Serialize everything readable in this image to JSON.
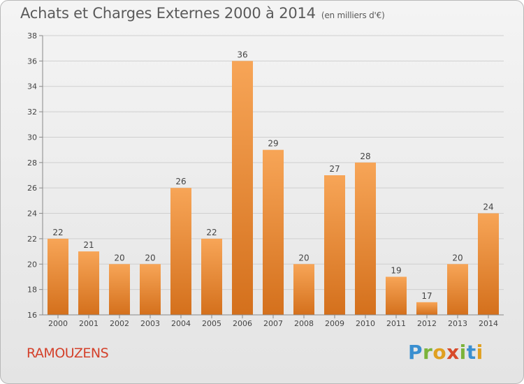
{
  "title": "Achats et Charges Externes 2000 à 2014",
  "subtitle": "(en milliers d'€)",
  "place": "RAMOUZENS",
  "logo_letters": [
    "P",
    "r",
    "o",
    "x",
    "i",
    "t",
    "i"
  ],
  "colors": {
    "bar_light": "#f7a557",
    "bar_dark": "#d4701c",
    "place": "#d4412b"
  },
  "chart_data": {
    "type": "bar",
    "title": "Achats et Charges Externes 2000 à 2014",
    "categories": [
      "2000",
      "2001",
      "2002",
      "2003",
      "2004",
      "2005",
      "2006",
      "2007",
      "2008",
      "2009",
      "2010",
      "2011",
      "2012",
      "2013",
      "2014"
    ],
    "values": [
      22,
      21,
      20,
      20,
      26,
      22,
      36,
      29,
      20,
      27,
      28,
      19,
      17,
      20,
      24
    ],
    "ylim": [
      16,
      38
    ],
    "yticks": [
      16,
      18,
      20,
      22,
      24,
      26,
      28,
      30,
      32,
      34,
      36,
      38
    ],
    "grid": true
  }
}
